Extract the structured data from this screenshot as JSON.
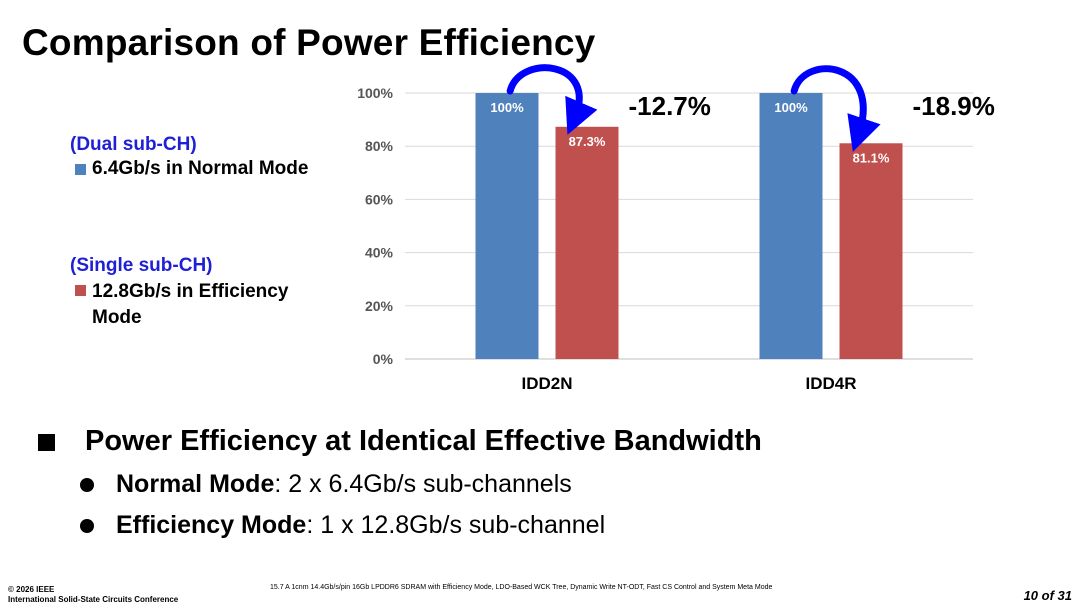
{
  "slide": {
    "title": "Comparison of Power Efficiency",
    "bullet_main": "Power Efficiency at Identical Effective Bandwidth",
    "sub_bullets": [
      {
        "bold": "Normal Mode",
        "rest": ": 2 x 6.4Gb/s sub-channels"
      },
      {
        "bold": "Efficiency Mode",
        "rest": ": 1 x 12.8Gb/s sub-channel"
      }
    ],
    "footer_left_line1": "© 2026 IEEE",
    "footer_left_line2": "International Solid-State Circuits Conference",
    "footer_center": "15.7 A 1cnm 14.4Gb/s/pin 16Gb LPDDR6 SDRAM with Efficiency Mode, LDO-Based WCK Tree, Dynamic Write NT-ODT, Fast CS Control and System Meta Mode",
    "page_number": "10 of 31"
  },
  "legend": {
    "group1": "(Dual sub-CH)",
    "entry1": "6.4Gb/s in Normal Mode",
    "group2": "(Single sub-CH)",
    "entry2": "12.8Gb/s in Efficiency Mode"
  },
  "chart_data": {
    "type": "bar",
    "categories": [
      "IDD2N",
      "IDD4R"
    ],
    "series": [
      {
        "name": "6.4Gb/s in Normal Mode",
        "color": "#4f81bd",
        "values": [
          100,
          100
        ],
        "labels": [
          "100%",
          "100%"
        ]
      },
      {
        "name": "12.8Gb/s in Efficiency Mode",
        "color": "#c0504d",
        "values": [
          87.3,
          81.1
        ],
        "labels": [
          "87.3%",
          "81.1%"
        ]
      }
    ],
    "ylim": [
      0,
      100
    ],
    "yticks": [
      "0%",
      "20%",
      "40%",
      "60%",
      "80%",
      "100%"
    ],
    "grid": true,
    "annotations": [
      "-12.7%",
      "-18.9%"
    ],
    "arrow_color": "#0000ff",
    "title": "",
    "xlabel": "",
    "ylabel": ""
  }
}
